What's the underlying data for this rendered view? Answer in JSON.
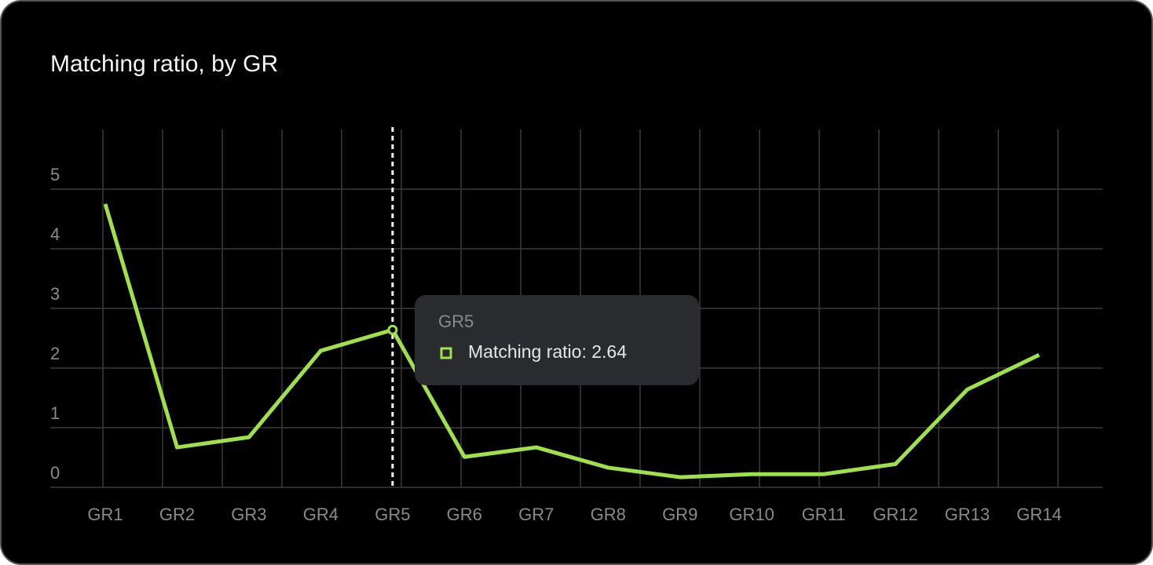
{
  "chart_data": {
    "type": "line",
    "title": "Matching ratio, by GR",
    "categories": [
      "GR1",
      "GR2",
      "GR3",
      "GR4",
      "GR5",
      "GR6",
      "GR7",
      "GR8",
      "GR9",
      "GR10",
      "GR11",
      "GR12",
      "GR13",
      "GR14"
    ],
    "series": [
      {
        "name": "Matching ratio",
        "color": "#9fe04b",
        "values": [
          4.75,
          0.67,
          0.84,
          2.29,
          2.64,
          0.51,
          0.67,
          0.33,
          0.17,
          0.22,
          0.22,
          0.39,
          1.64,
          2.22
        ]
      }
    ],
    "ylim": [
      0,
      6
    ],
    "yticks": [
      0,
      1,
      2,
      3,
      4,
      5
    ],
    "grid": true,
    "tooltip": {
      "category": "GR5",
      "text": "Matching ratio: 2.64",
      "index": 4
    }
  }
}
